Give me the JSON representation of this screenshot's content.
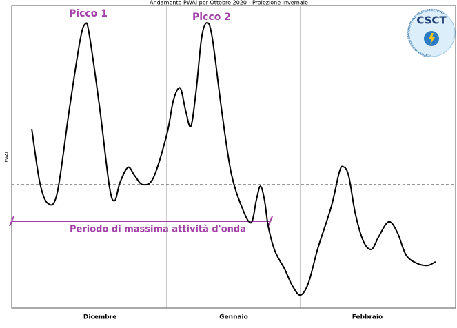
{
  "chart_data": {
    "type": "line",
    "title": "Andamento PWAI per Ottobre 2020 - Proiezione invernale",
    "y_label": "PWAI",
    "categories": [
      "Dicembre",
      "Gennaio",
      "Febbraio"
    ],
    "xlim": [
      -0.66,
      2.66
    ],
    "ylim": [
      0,
      100
    ],
    "reference_value": 40.8,
    "annotations": {
      "peak1": "Picco 1",
      "peak2": "Picco 2",
      "period": "Periodo di massima attività d'onda"
    },
    "logo": {
      "text": "CSCT",
      "ring": "CENTER FOR STUDY ON CLIMATE AND TELECONNECTIONS"
    },
    "series": [
      {
        "name": "PWAI",
        "color": "#000000",
        "x": [
          -0.51,
          -0.45,
          -0.39,
          -0.32,
          -0.23,
          -0.15,
          -0.11,
          -0.08,
          0,
          0.07,
          0.11,
          0.15,
          0.21,
          0.26,
          0.32,
          0.4,
          0.5,
          0.55,
          0.6,
          0.64,
          0.68,
          0.72,
          0.76,
          0.8,
          0.84,
          0.91,
          0.98,
          1.06,
          1.13,
          1.17,
          1.2,
          1.23,
          1.26,
          1.31,
          1.38,
          1.44,
          1.5,
          1.56,
          1.63,
          1.73,
          1.79,
          1.82,
          1.86,
          1.91,
          1.97,
          2.03,
          2.08,
          2.14,
          2.18,
          2.23,
          2.29,
          2.37,
          2.45,
          2.51
        ],
        "values": [
          59.2,
          41.5,
          34.6,
          38.0,
          65.4,
          88.2,
          93.9,
          90.4,
          65.4,
          40.3,
          35.5,
          41.5,
          46.5,
          43.7,
          40.8,
          43.1,
          57.4,
          68.8,
          72.7,
          65.4,
          60.1,
          72.2,
          89.3,
          94.3,
          89.3,
          65.4,
          44.9,
          33.5,
          28.2,
          35.8,
          40.3,
          35.8,
          26.7,
          18.7,
          13.0,
          7.3,
          4.3,
          8.4,
          19.8,
          33.5,
          44.9,
          46.7,
          43.7,
          31.2,
          22.1,
          19.4,
          23.2,
          27.8,
          28.2,
          24.4,
          17.5,
          14.8,
          14.1,
          15.3
        ]
      }
    ]
  }
}
